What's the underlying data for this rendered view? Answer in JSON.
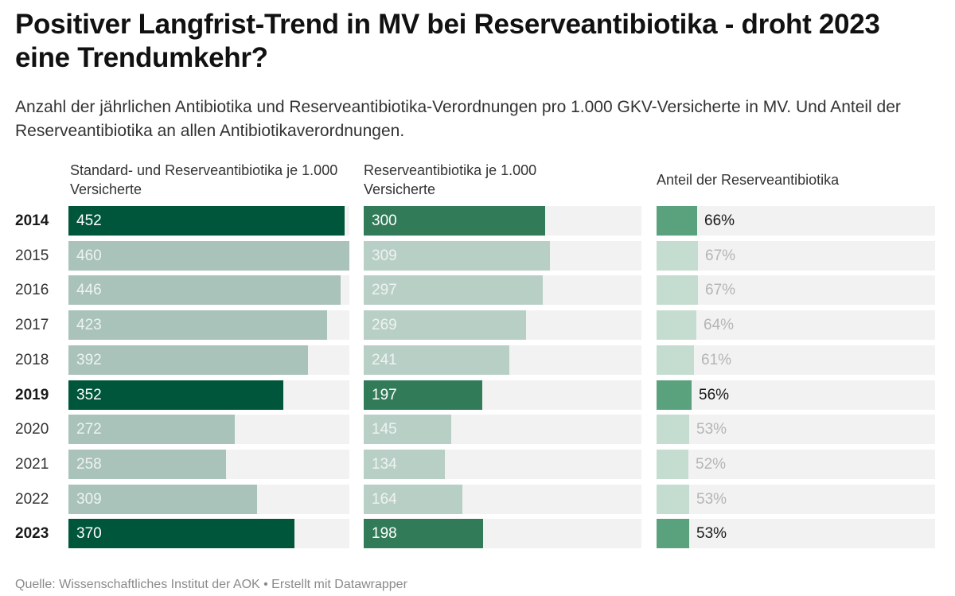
{
  "header": {
    "title": "Positiver Langfrist-Trend in MV bei Reserveantibiotika - droht 2023 eine Trendumkehr?",
    "subtitle": "Anzahl der jährlichen Antibiotika und Reserveantibiotika-Verordnungen pro 1.000 GKV-Versicherte in MV. Und Anteil der Reserveantibiotika an allen Antibiotikaverordnungen."
  },
  "footer": {
    "source": "Quelle: Wissenschaftliches Institut der AOK • Erstellt mit Datawrapper"
  },
  "colors": {
    "col1_highlight": "#00563a",
    "col1_normal": "#a9c3ba",
    "col2_highlight": "#327b59",
    "col2_normal": "#b8cfc6",
    "col3_highlight": "#5aa17d",
    "col3_normal": "#c5ddd1",
    "track": "#f2f2f2",
    "label_on_highlight": "#ffffff",
    "label_on_normal": "#eef3f1",
    "pct_highlight": "#1a1a1a",
    "pct_normal": "#b5b5b5"
  },
  "chart_data": {
    "type": "table",
    "title": "Positiver Langfrist-Trend in MV bei Reserveantibiotika - droht 2023 eine Trendumkehr?",
    "categories": [
      "2014",
      "2015",
      "2016",
      "2017",
      "2018",
      "2019",
      "2020",
      "2021",
      "2022",
      "2023"
    ],
    "highlighted": [
      "2014",
      "2019",
      "2023"
    ],
    "series": [
      {
        "name": "Standard- und Reserveantibiotika je 1.000 Versicherte",
        "values": [
          452,
          460,
          446,
          423,
          392,
          352,
          272,
          258,
          309,
          370
        ],
        "labels": [
          "452",
          "460",
          "446",
          "423",
          "392",
          "352",
          "272",
          "258",
          "309",
          "370"
        ],
        "range": [
          0,
          460
        ]
      },
      {
        "name": "Reserveantibiotika je 1.000 Versicherte",
        "values": [
          300,
          309,
          297,
          269,
          241,
          197,
          145,
          134,
          164,
          198
        ],
        "labels": [
          "300",
          "309",
          "297",
          "269",
          "241",
          "197",
          "145",
          "134",
          "164",
          "198"
        ],
        "range": [
          0,
          460
        ]
      },
      {
        "name": "Anteil der Reserveantibiotika",
        "values": [
          66,
          67,
          67,
          64,
          61,
          56,
          53,
          52,
          53,
          53
        ],
        "labels": [
          "66%",
          "67%",
          "67%",
          "64%",
          "61%",
          "56%",
          "53%",
          "52%",
          "53%",
          "53%"
        ],
        "range": [
          0,
          450
        ]
      }
    ]
  }
}
